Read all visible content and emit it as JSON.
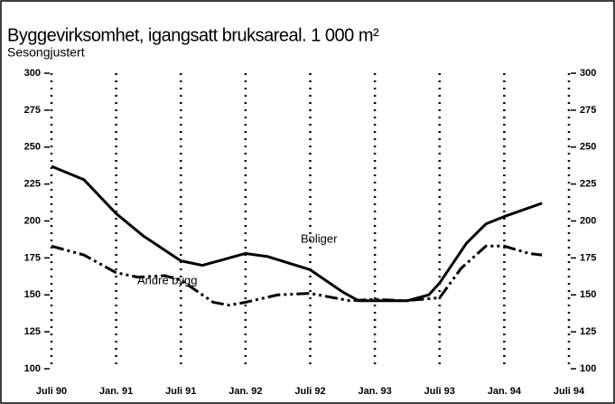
{
  "chart_data": {
    "type": "line",
    "title": "Byggevirksomhet, igangsatt bruksareal. 1 000 m²",
    "subtitle": "Sesongjustert",
    "series": [
      {
        "name": "Boliger",
        "color": "#000000",
        "style": "solid",
        "x": [
          0,
          3,
          6,
          8.5,
          12,
          14,
          16,
          18,
          20,
          24,
          27,
          28.5,
          30,
          33,
          35,
          36,
          38.5,
          40.3,
          42,
          45.5
        ],
        "values": [
          237,
          228,
          205,
          190,
          173,
          170,
          174,
          178,
          176,
          167,
          152,
          146,
          146,
          146,
          150,
          158,
          185,
          198,
          203,
          212
        ]
      },
      {
        "name": "Andre bygg",
        "color": "#000000",
        "style": "dashdot",
        "x": [
          0,
          3,
          6,
          8,
          10.5,
          12,
          15,
          16.5,
          18,
          21,
          24,
          27.7,
          30,
          32.7,
          36,
          38,
          40.3,
          42,
          44.3,
          45.5
        ],
        "values": [
          183,
          177,
          165,
          162,
          163,
          160,
          145,
          143,
          145,
          150,
          151,
          146,
          147,
          146,
          148,
          168,
          183,
          183,
          178,
          177
        ]
      }
    ],
    "xlim": [
      0,
      48
    ],
    "xticks": [
      {
        "value": 0,
        "label": "Juli 90"
      },
      {
        "value": 6,
        "label": "Jan. 91"
      },
      {
        "value": 12,
        "label": "Juli 91"
      },
      {
        "value": 18,
        "label": "Jan. 92"
      },
      {
        "value": 24,
        "label": "Juli 92"
      },
      {
        "value": 30,
        "label": "Jan. 93"
      },
      {
        "value": 36,
        "label": "Juli 93"
      },
      {
        "value": 42,
        "label": "Jan. 94"
      },
      {
        "value": 48,
        "label": "Juli 94"
      }
    ],
    "ylim": [
      100,
      300
    ],
    "yticks": [
      100,
      125,
      150,
      175,
      200,
      225,
      250,
      275,
      300
    ],
    "y2lim": [
      100,
      300
    ],
    "y2ticks": [
      100,
      125,
      150,
      175,
      200,
      225,
      250,
      275,
      300
    ],
    "grid": true
  }
}
